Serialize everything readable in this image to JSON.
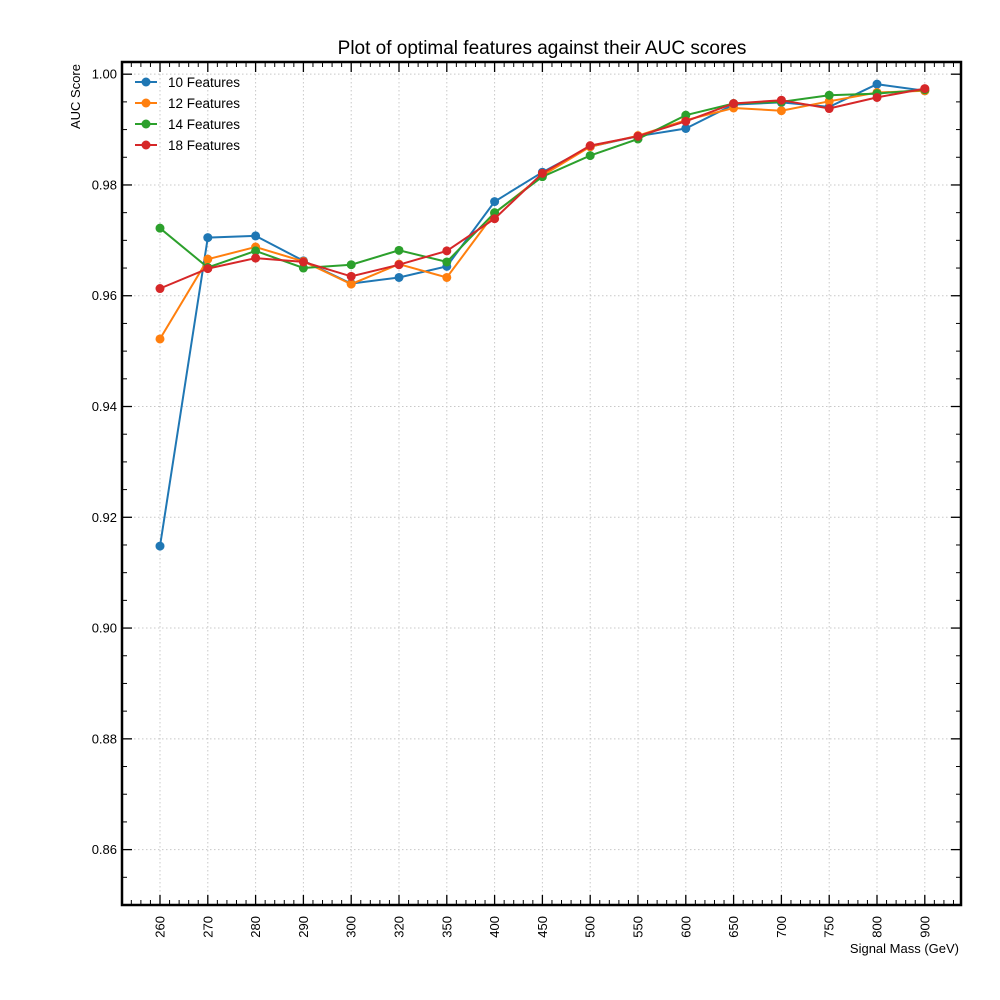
{
  "chart_data": {
    "type": "line",
    "title": "Plot of optimal features against their AUC scores",
    "xlabel": "Signal Mass (GeV)",
    "ylabel": "AUC Score",
    "categories": [
      "260",
      "270",
      "280",
      "290",
      "300",
      "320",
      "350",
      "400",
      "450",
      "500",
      "550",
      "600",
      "650",
      "700",
      "750",
      "800",
      "900"
    ],
    "ylim": [
      0.85,
      1.0022
    ],
    "yticks": [
      "0.86",
      "0.88",
      "0.90",
      "0.92",
      "0.94",
      "0.96",
      "0.98",
      "1.00"
    ],
    "grid": true,
    "legend_position": "top-left",
    "series": [
      {
        "name": "10 Features",
        "color": "#1f77b4",
        "values": [
          0.9148,
          0.9705,
          0.9708,
          0.9663,
          0.9622,
          0.9633,
          0.9653,
          0.977,
          0.9823,
          0.9869,
          0.9888,
          0.9902,
          0.9945,
          0.9949,
          0.9941,
          0.9982,
          0.997
        ]
      },
      {
        "name": "12 Features",
        "color": "#ff7f0e",
        "values": [
          0.9522,
          0.9666,
          0.9688,
          0.9662,
          0.9621,
          0.9657,
          0.9633,
          0.9749,
          0.9817,
          0.9869,
          0.9889,
          0.9917,
          0.9939,
          0.9934,
          0.9951,
          0.9967,
          0.997
        ]
      },
      {
        "name": "14 Features",
        "color": "#2ca02c",
        "values": [
          0.9722,
          0.9651,
          0.9681,
          0.965,
          0.9656,
          0.9682,
          0.9661,
          0.975,
          0.9815,
          0.9853,
          0.9883,
          0.9926,
          0.9947,
          0.995,
          0.9962,
          0.9965,
          0.9972
        ]
      },
      {
        "name": "18 Features",
        "color": "#d62728",
        "values": [
          0.9613,
          0.9649,
          0.9668,
          0.9661,
          0.9635,
          0.9656,
          0.9681,
          0.9739,
          0.9821,
          0.9871,
          0.9888,
          0.9915,
          0.9947,
          0.9953,
          0.9938,
          0.9958,
          0.9974
        ]
      }
    ]
  }
}
